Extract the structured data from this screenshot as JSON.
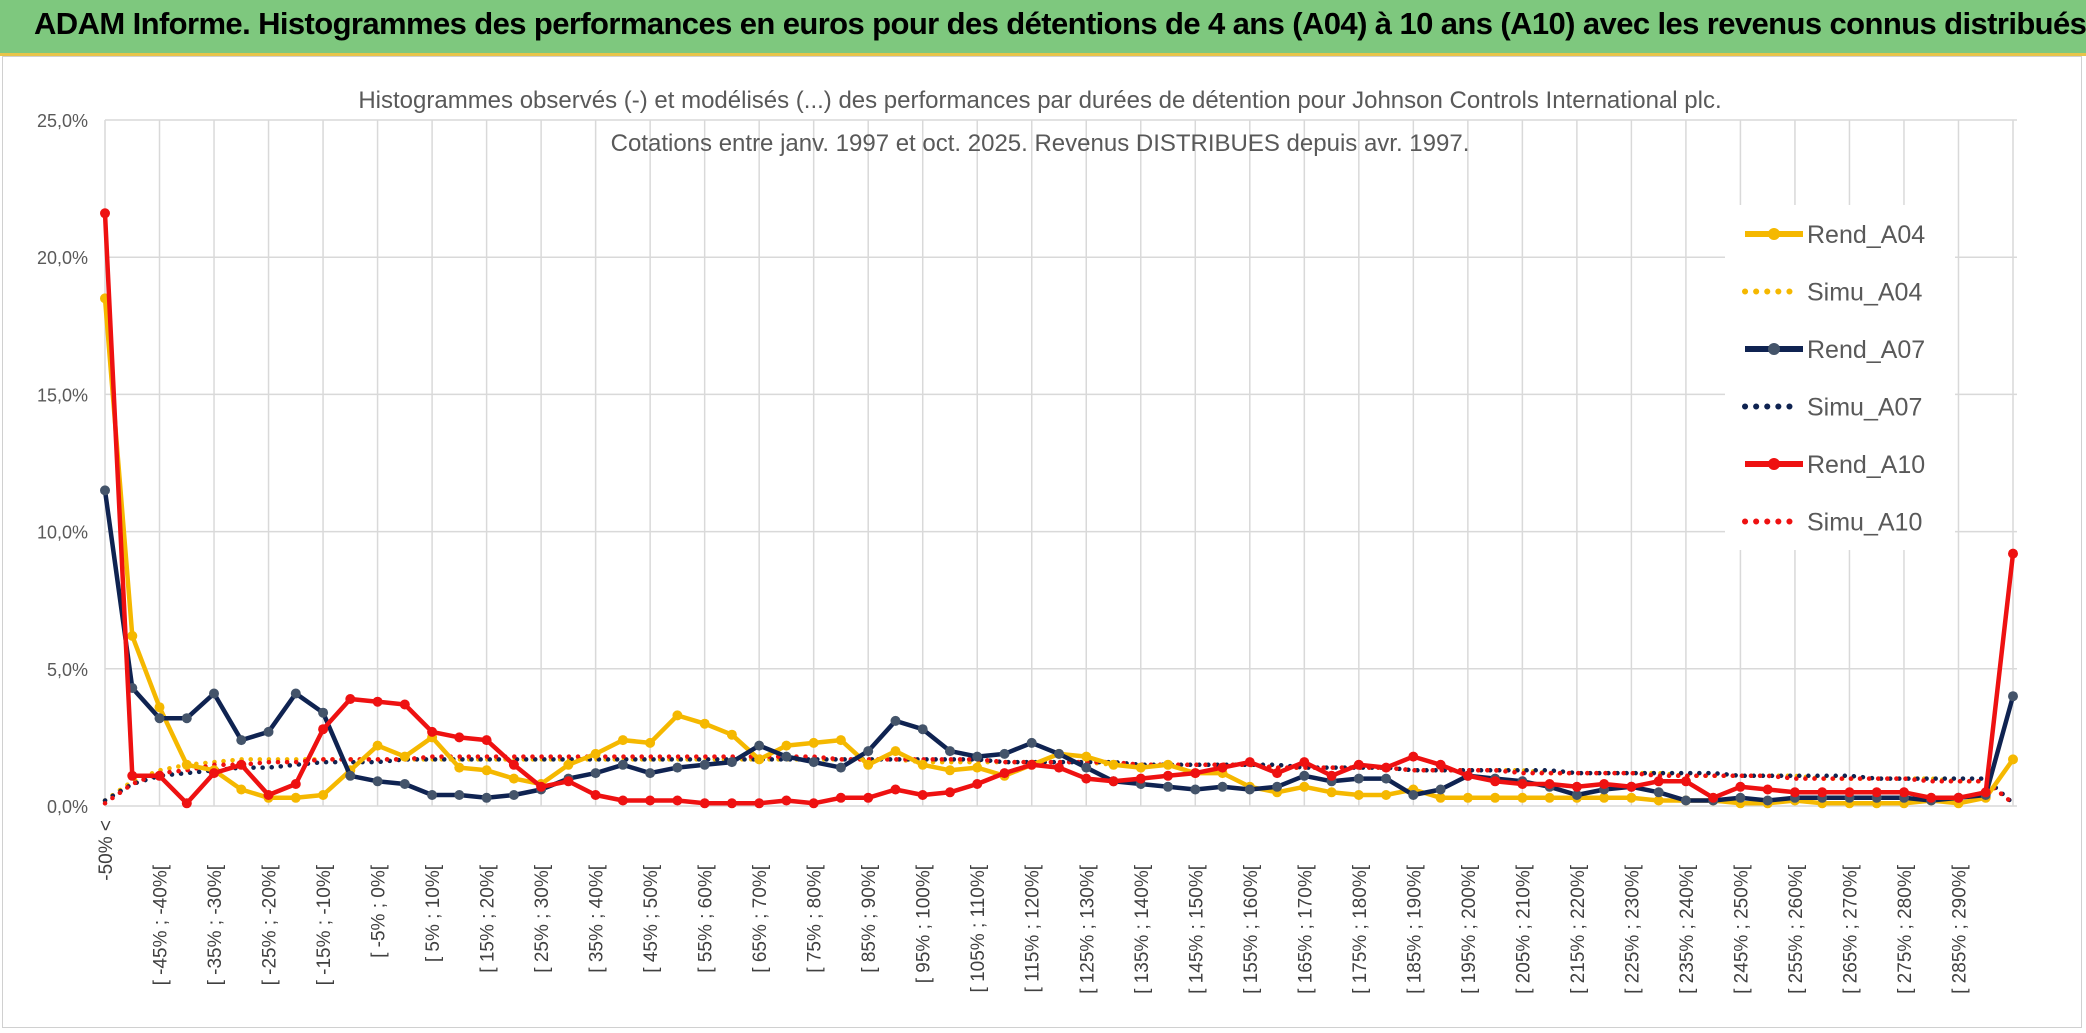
{
  "header": {
    "title": "ADAM Informe. Histogrammes des performances en euros pour des détentions de 4 ans (A04) à 10 ans (A10) avec les revenus connus distribués",
    "background": "#7ec87e"
  },
  "chart_data": {
    "type": "line",
    "title": "Histogrammes observés (-) et modélisés (...) des performances par durées de détention pour Johnson Controls International plc.",
    "subtitle": "Cotations entre janv. 1997 et oct. 2025. Revenus DISTRIBUES depuis avr. 1997.",
    "ylim": [
      0,
      25
    ],
    "yticks": [
      "0,0%",
      "5,0%",
      "10,0%",
      "15,0%",
      "20,0%",
      "25,0%"
    ],
    "yticks_values": [
      0,
      5,
      10,
      15,
      20,
      25
    ],
    "legend_position": "top-right",
    "categories": [
      "-50% <",
      "[ -50% ; -45%[",
      "[ -45% ; -40%[",
      "[ -40% ; -35%[",
      "[ -35% ; -30%[",
      "[ -30% ; -25%[",
      "[ -25% ; -20%[",
      "[ -20% ; -15%[",
      "[ -15% ; -10%[",
      "[ -10% ; -5%[",
      "[ -5% ; 0%[",
      "[ 0% ; 5%[",
      "[ 5% ; 10%[",
      "[ 10% ; 15%[",
      "[ 15% ; 20%[",
      "[ 20% ; 25%[",
      "[ 25% ; 30%[",
      "[ 30% ; 35%[",
      "[ 35% ; 40%[",
      "[ 40% ; 45%[",
      "[ 45% ; 50%[",
      "[ 50% ; 55%[",
      "[ 55% ; 60%[",
      "[ 60% ; 65%[",
      "[ 65% ; 70%[",
      "[ 70% ; 75%[",
      "[ 75% ; 80%[",
      "[ 80% ; 85%[",
      "[ 85% ; 90%[",
      "[ 90% ; 95%[",
      "[ 95% ; 100%[",
      "[ 100% ; 105%[",
      "[ 105% ; 110%[",
      "[ 110% ; 115%[",
      "[ 115% ; 120%[",
      "[ 120% ; 125%[",
      "[ 125% ; 130%[",
      "[ 130% ; 135%[",
      "[ 135% ; 140%[",
      "[ 140% ; 145%[",
      "[ 145% ; 150%[",
      "[ 150% ; 155%[",
      "[ 155% ; 160%[",
      "[ 160% ; 165%[",
      "[ 165% ; 170%[",
      "[ 170% ; 175%[",
      "[ 175% ; 180%[",
      "[ 180% ; 185%[",
      "[ 185% ; 190%[",
      "[ 190% ; 195%[",
      "[ 195% ; 200%[",
      "[ 200% ; 205%[",
      "[ 205% ; 210%[",
      "[ 210% ; 215%[",
      "[ 215% ; 220%[",
      "[ 220% ; 225%[",
      "[ 225% ; 230%[",
      "[ 230% ; 235%[",
      "[ 235% ; 240%[",
      "[ 240% ; 245%[",
      "[ 245% ; 250%[",
      "[ 250% ; 255%[",
      "[ 255% ; 260%[",
      "[ 260% ; 265%[",
      "[ 265% ; 270%[",
      "[ 270% ; 275%[",
      "[ 275% ; 280%[",
      "[ 280% ; 285%[",
      "[ 285% ; 290%[",
      "[ 290% ; 295%[",
      "> 295%"
    ],
    "visible_tick_labels": [
      "-50% <",
      "[ -45% ; -40%[",
      "[ -35% ; -30%[",
      "[ -25% ; -20%[",
      "[ -15% ; -10%[",
      "[ -5% ; 0%[",
      "[ 5% ; 10%[",
      "[ 15% ; 20%[",
      "[ 25% ; 30%[",
      "[ 35% ; 40%[",
      "[ 45% ; 50%[",
      "[ 55% ; 60%[",
      "[ 65% ; 70%[",
      "[ 75% ; 80%[",
      "[ 85% ; 90%[",
      "[ 95% ; 100%[",
      "[ 105% ; 110%[",
      "[ 115% ; 120%[",
      "[ 125% ; 130%[",
      "[ 135% ; 140%[",
      "[ 145% ; 150%[",
      "[ 155% ; 160%[",
      "[ 165% ; 170%[",
      "[ 175% ; 180%[",
      "[ 185% ; 190%[",
      "[ 195% ; 200%[",
      "[ 205% ; 210%[",
      "[ 215% ; 220%[",
      "[ 225% ; 230%[",
      "[ 235% ; 240%[",
      "[ 245% ; 250%[",
      "[ 255% ; 260%[",
      "[ 265% ; 270%[",
      "[ 275% ; 280%[",
      "[ 285% ; 290%["
    ],
    "series": [
      {
        "name": "Rend_A04",
        "color": "#f5b800",
        "style": "solid",
        "values": [
          18.5,
          6.2,
          3.6,
          1.5,
          1.3,
          0.6,
          0.3,
          0.3,
          0.4,
          1.3,
          2.2,
          1.8,
          2.5,
          1.4,
          1.3,
          1.0,
          0.8,
          1.5,
          1.9,
          2.4,
          2.3,
          3.3,
          3.0,
          2.6,
          1.7,
          2.2,
          2.3,
          2.4,
          1.5,
          2.0,
          1.5,
          1.3,
          1.4,
          1.1,
          1.5,
          1.9,
          1.8,
          1.5,
          1.4,
          1.5,
          1.2,
          1.2,
          0.7,
          0.5,
          0.7,
          0.5,
          0.4,
          0.4,
          0.6,
          0.3,
          0.3,
          0.3,
          0.3,
          0.3,
          0.3,
          0.3,
          0.3,
          0.2,
          0.2,
          0.2,
          0.1,
          0.1,
          0.2,
          0.1,
          0.1,
          0.1,
          0.1,
          0.2,
          0.1,
          0.3,
          1.7
        ]
      },
      {
        "name": "Simu_A04",
        "color": "#f5b800",
        "style": "dotted",
        "values": [
          0.2,
          0.9,
          1.3,
          1.5,
          1.6,
          1.7,
          1.7,
          1.7,
          1.7,
          1.7,
          1.7,
          1.7,
          1.7,
          1.7,
          1.7,
          1.7,
          1.7,
          1.7,
          1.7,
          1.7,
          1.7,
          1.7,
          1.7,
          1.7,
          1.7,
          1.7,
          1.7,
          1.7,
          1.7,
          1.7,
          1.6,
          1.6,
          1.6,
          1.6,
          1.6,
          1.6,
          1.6,
          1.5,
          1.5,
          1.5,
          1.5,
          1.5,
          1.5,
          1.4,
          1.4,
          1.4,
          1.4,
          1.4,
          1.3,
          1.3,
          1.3,
          1.3,
          1.3,
          1.2,
          1.2,
          1.2,
          1.2,
          1.2,
          1.1,
          1.1,
          1.1,
          1.1,
          1.1,
          1.0,
          1.0,
          1.0,
          1.0,
          1.0,
          0.9,
          0.9,
          0.1
        ]
      },
      {
        "name": "Rend_A07",
        "color": "#0f2351",
        "style": "solid",
        "values": [
          11.5,
          4.3,
          3.2,
          3.2,
          4.1,
          2.4,
          2.7,
          4.1,
          3.4,
          1.1,
          0.9,
          0.8,
          0.4,
          0.4,
          0.3,
          0.4,
          0.6,
          1.0,
          1.2,
          1.5,
          1.2,
          1.4,
          1.5,
          1.6,
          2.2,
          1.8,
          1.6,
          1.4,
          2.0,
          3.1,
          2.8,
          2.0,
          1.8,
          1.9,
          2.3,
          1.9,
          1.4,
          0.9,
          0.8,
          0.7,
          0.6,
          0.7,
          0.6,
          0.7,
          1.1,
          0.9,
          1.0,
          1.0,
          0.4,
          0.6,
          1.1,
          1.0,
          0.9,
          0.7,
          0.4,
          0.6,
          0.7,
          0.5,
          0.2,
          0.2,
          0.3,
          0.2,
          0.3,
          0.3,
          0.3,
          0.3,
          0.3,
          0.2,
          0.3,
          0.4,
          4.0
        ]
      },
      {
        "name": "Simu_A07",
        "color": "#0f2351",
        "style": "dotted",
        "values": [
          0.2,
          0.8,
          1.1,
          1.2,
          1.3,
          1.4,
          1.4,
          1.5,
          1.6,
          1.6,
          1.6,
          1.7,
          1.7,
          1.7,
          1.7,
          1.7,
          1.7,
          1.7,
          1.7,
          1.7,
          1.7,
          1.7,
          1.7,
          1.7,
          1.7,
          1.7,
          1.7,
          1.7,
          1.7,
          1.7,
          1.7,
          1.7,
          1.7,
          1.6,
          1.6,
          1.6,
          1.6,
          1.6,
          1.5,
          1.5,
          1.5,
          1.5,
          1.5,
          1.5,
          1.4,
          1.4,
          1.4,
          1.4,
          1.3,
          1.3,
          1.3,
          1.3,
          1.3,
          1.3,
          1.2,
          1.2,
          1.2,
          1.2,
          1.2,
          1.2,
          1.1,
          1.1,
          1.1,
          1.1,
          1.1,
          1.0,
          1.0,
          1.0,
          1.0,
          1.0,
          0.1
        ]
      },
      {
        "name": "Rend_A10",
        "color": "#ee1111",
        "style": "solid",
        "values": [
          21.6,
          1.1,
          1.1,
          0.1,
          1.2,
          1.5,
          0.4,
          0.8,
          2.8,
          3.9,
          3.8,
          3.7,
          2.7,
          2.5,
          2.4,
          1.5,
          0.7,
          0.9,
          0.4,
          0.2,
          0.2,
          0.2,
          0.1,
          0.1,
          0.1,
          0.2,
          0.1,
          0.3,
          0.3,
          0.6,
          0.4,
          0.5,
          0.8,
          1.2,
          1.5,
          1.4,
          1.0,
          0.9,
          1.0,
          1.1,
          1.2,
          1.4,
          1.6,
          1.2,
          1.6,
          1.1,
          1.5,
          1.4,
          1.8,
          1.5,
          1.1,
          0.9,
          0.8,
          0.8,
          0.7,
          0.8,
          0.7,
          0.9,
          0.9,
          0.3,
          0.7,
          0.6,
          0.5,
          0.5,
          0.5,
          0.5,
          0.5,
          0.3,
          0.3,
          0.5,
          9.2
        ]
      },
      {
        "name": "Simu_A10",
        "color": "#ee1111",
        "style": "dotted",
        "values": [
          0.1,
          0.8,
          1.2,
          1.3,
          1.5,
          1.5,
          1.6,
          1.6,
          1.7,
          1.7,
          1.7,
          1.7,
          1.8,
          1.8,
          1.8,
          1.8,
          1.8,
          1.8,
          1.8,
          1.8,
          1.8,
          1.8,
          1.8,
          1.8,
          1.8,
          1.8,
          1.8,
          1.7,
          1.7,
          1.7,
          1.7,
          1.7,
          1.7,
          1.6,
          1.6,
          1.6,
          1.6,
          1.6,
          1.5,
          1.5,
          1.5,
          1.5,
          1.5,
          1.4,
          1.4,
          1.4,
          1.4,
          1.4,
          1.3,
          1.3,
          1.3,
          1.3,
          1.2,
          1.2,
          1.2,
          1.2,
          1.2,
          1.1,
          1.1,
          1.1,
          1.1,
          1.1,
          1.0,
          1.0,
          1.0,
          1.0,
          1.0,
          0.9,
          0.9,
          0.9,
          0.1
        ]
      }
    ]
  }
}
